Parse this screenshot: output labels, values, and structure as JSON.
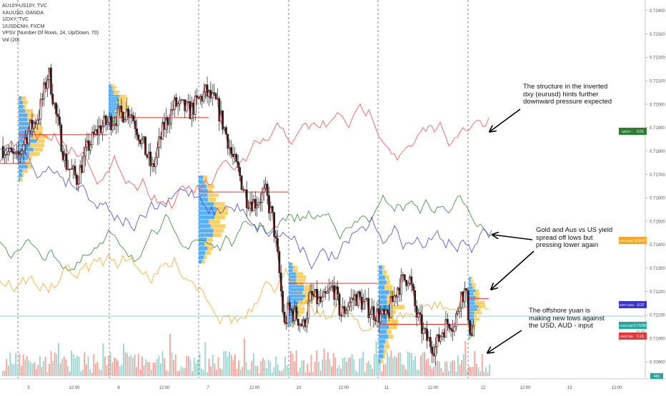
{
  "legend": {
    "line1": "AU10Y-US10Y, TVC",
    "line2": "XAUUSD, OANDA",
    "line3": "1/DXY, TVC",
    "line4": "1/USDCNH, FXCM",
    "line5": "VPSV (Number Of Rows, 24, Up/Down, 70)",
    "line6": "Vol (20)"
  },
  "annotations": {
    "a1": [
      "The structure in the inverted",
      "dxy (eurusd) hints further",
      "downward pressure expected"
    ],
    "a2": [
      "Gold and Aus vs US yield",
      "spread off lows but",
      "pressing lower again"
    ],
    "a3": [
      "The offshore yuan is",
      "making new lows against",
      "the USD, AUD - input"
    ]
  },
  "badges": {
    "udxy": {
      "label": "UDXY",
      "value": "0.01"
    },
    "xauusd": {
      "label": "XAUUSD",
      "value": "1194.87"
    },
    "spread": {
      "label": "AU10Y-US10Y",
      "value": "-0.37"
    },
    "audusd": {
      "label": "AUDUSD",
      "value": "0.71095",
      "sub": "15:35"
    },
    "usdcnh": {
      "label": "USDCNH",
      "value": "0.15"
    },
    "volume": {
      "value": "460"
    }
  },
  "colors": {
    "up": "#26a69a",
    "down": "#ef5350",
    "candle_body": "#1c1c1c",
    "dxy": "#2e7d32",
    "gold": "#f5a623",
    "spread": "#3f3fd1",
    "cnh": "#e84a4a",
    "vp_up": "#2196f3",
    "vp_down": "#fbc02d",
    "poc": "#e53935"
  },
  "chart_data": {
    "type": "line",
    "symbol": "AUDUSD",
    "y_axis_ticks": [
      0.724,
      0.723,
      0.722,
      0.721,
      0.72,
      0.719,
      0.718,
      0.717,
      0.716,
      0.715,
      0.714,
      0.713,
      0.712,
      0.711,
      0.71,
      0.709
    ],
    "y_axis_labels": [
      "0.72400",
      "0.72300",
      "0.72200",
      "0.72100",
      "0.72000",
      "0.71900",
      "0.71800",
      "0.71700",
      "0.71600",
      "0.71500",
      "0.71400",
      "0.71300",
      "0.71200",
      "0.71100",
      "0.71000",
      "0.70900"
    ],
    "ylim": [
      0.7083,
      0.72445
    ],
    "x_labels": [
      "5",
      "12:00",
      "6",
      "12:00",
      "7",
      "12:00",
      "10",
      "12:00",
      "11",
      "12:00",
      "12",
      "12:00",
      "13",
      "12:00"
    ],
    "session_breaks": [
      "5",
      "6",
      "7",
      "10",
      "11",
      "12"
    ],
    "price_path": [
      [
        0.0,
        0.7182
      ],
      [
        0.4,
        0.7176
      ],
      [
        0.7,
        0.7188
      ],
      [
        1.0,
        0.7196
      ],
      [
        1.25,
        0.7214
      ],
      [
        1.45,
        0.7195
      ],
      [
        1.7,
        0.7175
      ],
      [
        2.0,
        0.7168
      ],
      [
        2.3,
        0.7182
      ],
      [
        2.6,
        0.719
      ],
      [
        3.0,
        0.7194
      ],
      [
        3.4,
        0.7198
      ],
      [
        3.7,
        0.7185
      ],
      [
        4.0,
        0.7172
      ],
      [
        4.3,
        0.719
      ],
      [
        4.6,
        0.72
      ],
      [
        5.0,
        0.7197
      ],
      [
        5.4,
        0.7205
      ],
      [
        5.7,
        0.72
      ],
      [
        6.0,
        0.7185
      ],
      [
        6.1,
        0.7178
      ],
      [
        6.3,
        0.717
      ],
      [
        6.5,
        0.716
      ],
      [
        6.7,
        0.7158
      ],
      [
        7.0,
        0.7162
      ],
      [
        7.2,
        0.715
      ],
      [
        7.35,
        0.713
      ],
      [
        7.5,
        0.7105
      ],
      [
        7.6,
        0.7112
      ],
      [
        7.8,
        0.711
      ],
      [
        8.0,
        0.7105
      ],
      [
        8.2,
        0.7118
      ],
      [
        8.5,
        0.7115
      ],
      [
        8.8,
        0.7122
      ],
      [
        9.0,
        0.711
      ],
      [
        9.2,
        0.7115
      ],
      [
        9.4,
        0.7118
      ],
      [
        9.7,
        0.7113
      ],
      [
        10.0,
        0.711
      ],
      [
        10.2,
        0.7108
      ],
      [
        10.5,
        0.7122
      ],
      [
        10.8,
        0.7127
      ],
      [
        11.0,
        0.711
      ],
      [
        11.25,
        0.71
      ],
      [
        11.5,
        0.7096
      ],
      [
        11.7,
        0.7104
      ],
      [
        11.9,
        0.7108
      ],
      [
        12.0,
        0.7104
      ],
      [
        12.15,
        0.7118
      ],
      [
        12.3,
        0.712
      ],
      [
        12.45,
        0.71
      ],
      [
        12.55,
        0.71095
      ]
    ],
    "poc_levels": [
      {
        "session": "5",
        "price": 0.71747
      },
      {
        "session": "5b",
        "price": 0.7187
      },
      {
        "session": "6",
        "price": 0.71943
      },
      {
        "session": "7",
        "price": 0.71625
      },
      {
        "session": "10",
        "price": 0.71235
      },
      {
        "session": "11",
        "price": 0.7106
      },
      {
        "session": "12",
        "price": 0.7117
      }
    ],
    "last_price": 0.71095,
    "series": [
      {
        "name": "AU10Y-US10Y",
        "last": "-0.37"
      },
      {
        "name": "XAUUSD",
        "last": "1194.87"
      },
      {
        "name": "1/DXY",
        "last": "0.01"
      },
      {
        "name": "1/USDCNH",
        "last": "0.15"
      }
    ],
    "grid": false
  }
}
